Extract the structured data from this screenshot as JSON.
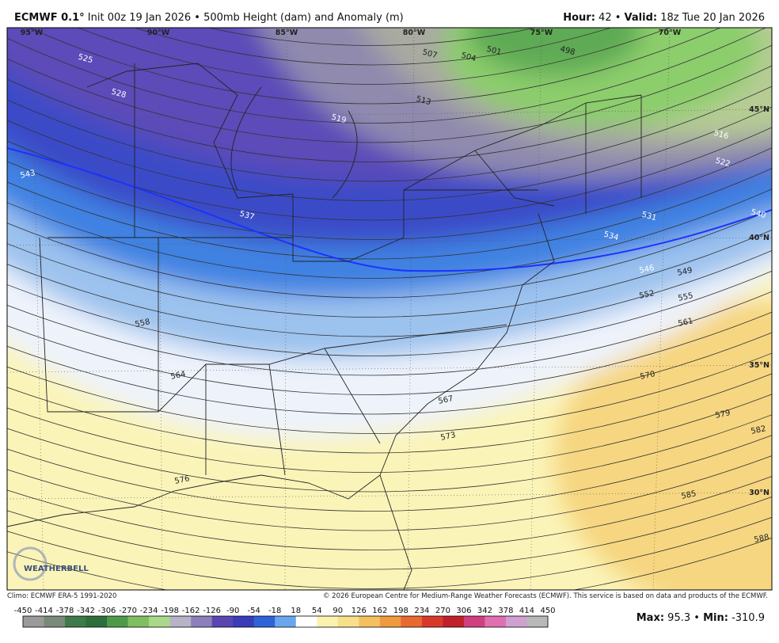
{
  "header": {
    "model": "ECMWF 0.1°",
    "init": "Init 00z 19 Jan 2026",
    "separator": "•",
    "product": "500mb Height (dam) and Anomaly (m)",
    "hour_label": "Hour:",
    "hour": "42",
    "valid_label": "Valid:",
    "valid": "18z Tue 20 Jan 2026"
  },
  "map": {
    "longitudes": [
      "95°W",
      "90°W",
      "85°W",
      "80°W",
      "75°W",
      "70°W"
    ],
    "latitudes": [
      "45°N",
      "40°N",
      "35°N",
      "30°N"
    ],
    "contour_labels": [
      "525",
      "528",
      "519",
      "513",
      "507",
      "504",
      "501",
      "498",
      "516",
      "522",
      "531",
      "534",
      "537",
      "540",
      "543",
      "546",
      "549",
      "552",
      "555",
      "558",
      "561",
      "564",
      "567",
      "570",
      "573",
      "576",
      "579",
      "582",
      "585",
      "588"
    ],
    "logo": "WEATHERBELL"
  },
  "footer": {
    "climo": "Climo: ECMWF ERA-5 1991-2020",
    "copyright": "© 2026 European Centre for Medium-Range Weather Forecasts (ECMWF). This service is based on data and products of the ECMWF.",
    "colorbar": [
      "-450",
      "-414",
      "-378",
      "-342",
      "-306",
      "-270",
      "-234",
      "-198",
      "-162",
      "-126",
      "-90",
      "-54",
      "-18",
      "18",
      "54",
      "90",
      "126",
      "162",
      "198",
      "234",
      "270",
      "306",
      "342",
      "378",
      "414",
      "450"
    ],
    "max_label": "Max:",
    "max": "95.3",
    "min_label": "Min:",
    "min": "-310.9"
  }
}
